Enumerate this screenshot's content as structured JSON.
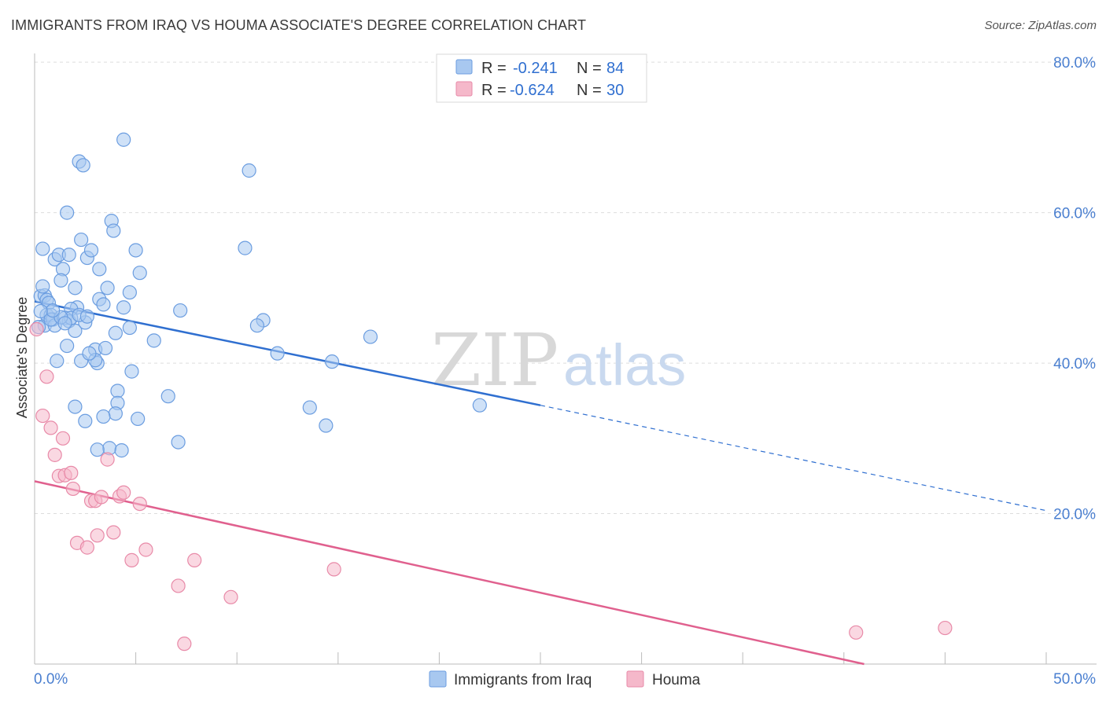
{
  "title": "IMMIGRANTS FROM IRAQ VS HOUMA ASSOCIATE'S DEGREE CORRELATION CHART",
  "source": "Source: ZipAtlas.com",
  "watermark": {
    "zip": "ZIP",
    "atlas": "atlas"
  },
  "colors": {
    "blue_fill": "#a8c8f0",
    "blue_stroke": "#6b9de0",
    "blue_line": "#2f6fd0",
    "pink_fill": "#f5b8ca",
    "pink_stroke": "#e88aa8",
    "pink_line": "#e0608e",
    "tick_text": "#4a7fd0",
    "grid": "#dddddd"
  },
  "legend": {
    "rows": [
      {
        "r_label": "R =",
        "r_value": "-0.241",
        "n_label": "N =",
        "n_value": "84",
        "color": "blue"
      },
      {
        "r_label": "R =",
        "r_value": "-0.624",
        "n_label": "N =",
        "n_value": "30",
        "color": "pink"
      }
    ]
  },
  "chart_data": {
    "type": "scatter",
    "title": "IMMIGRANTS FROM IRAQ VS HOUMA ASSOCIATE'S DEGREE CORRELATION CHART",
    "xlabel": "",
    "ylabel": "Associate's Degree",
    "xlim": [
      0,
      50
    ],
    "ylim": [
      0,
      82
    ],
    "x_tick_labels": [
      "0.0%",
      "50.0%"
    ],
    "y_ticks": [
      20,
      40,
      60,
      80
    ],
    "y_tick_labels": [
      "20.0%",
      "40.0%",
      "60.0%",
      "80.0%"
    ],
    "grid": true,
    "legend_placement": "top-center",
    "series": [
      {
        "name": "Immigrants from Iraq",
        "color": "blue",
        "trend": {
          "x0": 0,
          "y0": 48.2,
          "x1": 25,
          "y1": 34.4,
          "dash_x1": 50,
          "dash_y1": 20.4
        },
        "points": [
          [
            0.3,
            48.9
          ],
          [
            0.5,
            49.0
          ],
          [
            0.4,
            50.2
          ],
          [
            0.6,
            48.4
          ],
          [
            0.7,
            48.0
          ],
          [
            0.5,
            45.0
          ],
          [
            0.6,
            46.4
          ],
          [
            0.8,
            46.4
          ],
          [
            0.9,
            45.8
          ],
          [
            1.0,
            45.0
          ],
          [
            0.4,
            55.2
          ],
          [
            1.0,
            53.8
          ],
          [
            1.2,
            54.4
          ],
          [
            1.4,
            52.5
          ],
          [
            1.3,
            51.0
          ],
          [
            1.7,
            54.4
          ],
          [
            1.6,
            60.0
          ],
          [
            2.0,
            50.0
          ],
          [
            2.1,
            47.4
          ],
          [
            1.8,
            47.2
          ],
          [
            1.5,
            46.0
          ],
          [
            1.7,
            45.6
          ],
          [
            2.0,
            44.3
          ],
          [
            2.5,
            45.4
          ],
          [
            1.6,
            42.3
          ],
          [
            1.1,
            40.3
          ],
          [
            2.3,
            40.3
          ],
          [
            3.0,
            41.8
          ],
          [
            3.1,
            40.0
          ],
          [
            3.2,
            48.5
          ],
          [
            3.4,
            47.8
          ],
          [
            3.6,
            50.0
          ],
          [
            3.2,
            52.5
          ],
          [
            2.6,
            54.0
          ],
          [
            2.8,
            55.0
          ],
          [
            2.3,
            56.4
          ],
          [
            2.2,
            66.8
          ],
          [
            2.4,
            66.3
          ],
          [
            3.8,
            58.9
          ],
          [
            3.9,
            57.6
          ],
          [
            4.4,
            69.7
          ],
          [
            4.4,
            47.4
          ],
          [
            4.7,
            49.4
          ],
          [
            4.7,
            44.7
          ],
          [
            4.0,
            44.0
          ],
          [
            4.8,
            38.9
          ],
          [
            3.5,
            42.0
          ],
          [
            3.0,
            40.4
          ],
          [
            2.7,
            41.3
          ],
          [
            4.1,
            36.3
          ],
          [
            4.1,
            34.7
          ],
          [
            4.0,
            33.3
          ],
          [
            3.4,
            32.9
          ],
          [
            2.5,
            32.3
          ],
          [
            2.0,
            34.2
          ],
          [
            5.0,
            55.0
          ],
          [
            5.2,
            52.0
          ],
          [
            5.9,
            43.0
          ],
          [
            6.6,
            35.6
          ],
          [
            7.2,
            47.0
          ],
          [
            7.1,
            29.5
          ],
          [
            3.7,
            28.7
          ],
          [
            3.1,
            28.5
          ],
          [
            4.3,
            28.4
          ],
          [
            5.1,
            32.6
          ],
          [
            1.8,
            46.0
          ],
          [
            10.4,
            55.3
          ],
          [
            10.6,
            65.6
          ],
          [
            11.3,
            45.7
          ],
          [
            12.0,
            41.3
          ],
          [
            11.0,
            45.0
          ],
          [
            13.6,
            34.1
          ],
          [
            14.4,
            31.7
          ],
          [
            14.7,
            40.2
          ],
          [
            16.6,
            43.5
          ],
          [
            22.0,
            34.4
          ],
          [
            0.2,
            44.8
          ],
          [
            0.8,
            45.8
          ],
          [
            1.3,
            46.1
          ],
          [
            2.2,
            46.4
          ],
          [
            0.9,
            47.0
          ],
          [
            1.5,
            45.3
          ],
          [
            0.3,
            46.9
          ],
          [
            2.6,
            46.2
          ]
        ]
      },
      {
        "name": "Houma",
        "color": "pink",
        "trend": {
          "x0": 0,
          "y0": 24.3,
          "x1": 41,
          "y1": 0
        },
        "points": [
          [
            0.1,
            44.5
          ],
          [
            0.6,
            38.2
          ],
          [
            0.4,
            33.0
          ],
          [
            0.8,
            31.4
          ],
          [
            1.4,
            30.0
          ],
          [
            1.0,
            27.8
          ],
          [
            1.2,
            25.0
          ],
          [
            1.5,
            25.1
          ],
          [
            1.8,
            25.4
          ],
          [
            1.9,
            23.3
          ],
          [
            2.8,
            21.7
          ],
          [
            3.0,
            21.7
          ],
          [
            3.3,
            22.2
          ],
          [
            3.6,
            27.2
          ],
          [
            4.2,
            22.3
          ],
          [
            4.4,
            22.8
          ],
          [
            5.2,
            21.3
          ],
          [
            2.1,
            16.1
          ],
          [
            2.6,
            15.5
          ],
          [
            3.1,
            17.1
          ],
          [
            3.9,
            17.5
          ],
          [
            4.8,
            13.8
          ],
          [
            5.5,
            15.2
          ],
          [
            7.1,
            10.4
          ],
          [
            7.9,
            13.8
          ],
          [
            9.7,
            8.9
          ],
          [
            14.8,
            12.6
          ],
          [
            40.6,
            4.2
          ],
          [
            45.0,
            4.8
          ],
          [
            7.4,
            2.7
          ]
        ]
      }
    ]
  },
  "bottom_legend": [
    {
      "label": "Immigrants from Iraq",
      "color": "blue"
    },
    {
      "label": "Houma",
      "color": "pink"
    }
  ]
}
